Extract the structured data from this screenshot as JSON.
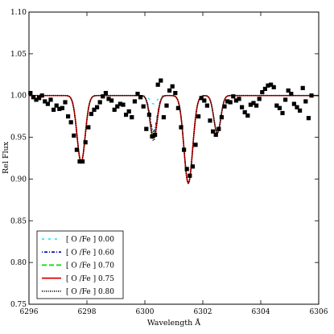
{
  "chart_data": {
    "type": "line",
    "xlabel": "Wavelength Å",
    "ylabel": "Rel Flux",
    "xlim": [
      6296,
      6306
    ],
    "ylim": [
      0.75,
      1.1
    ],
    "x_ticks": [
      6296,
      6298,
      6300,
      6302,
      6304,
      6306
    ],
    "x_tick_labels": [
      "6296",
      "6298",
      "6300",
      "6302",
      "6304",
      "6306"
    ],
    "y_ticks": [
      0.75,
      0.8,
      0.85,
      0.9,
      0.95,
      1.0,
      1.05,
      1.1
    ],
    "y_tick_labels": [
      "0.75",
      "0.80",
      "0.85",
      "0.90",
      "0.95",
      "1.00",
      "1.05",
      "1.10"
    ],
    "grid": false,
    "legend_position": "bottom-left",
    "observed": {
      "marker": "square",
      "color": "#000000",
      "points": [
        [
          6296.05,
          1.003
        ],
        [
          6296.15,
          0.998
        ],
        [
          6296.25,
          0.995
        ],
        [
          6296.35,
          0.997
        ],
        [
          6296.45,
          1.0
        ],
        [
          6296.55,
          0.993
        ],
        [
          6296.65,
          0.99
        ],
        [
          6296.75,
          0.995
        ],
        [
          6296.85,
          0.983
        ],
        [
          6296.95,
          0.988
        ],
        [
          6297.05,
          0.984
        ],
        [
          6297.15,
          0.985
        ],
        [
          6297.25,
          0.992
        ],
        [
          6297.35,
          0.975
        ],
        [
          6297.45,
          0.968
        ],
        [
          6297.55,
          0.952
        ],
        [
          6297.65,
          0.935
        ],
        [
          6297.75,
          0.921
        ],
        [
          6297.85,
          0.921
        ],
        [
          6297.95,
          0.944
        ],
        [
          6298.05,
          0.962
        ],
        [
          6298.15,
          0.978
        ],
        [
          6298.25,
          0.983
        ],
        [
          6298.35,
          0.986
        ],
        [
          6298.45,
          0.992
        ],
        [
          6298.55,
          0.999
        ],
        [
          6298.65,
          1.003
        ],
        [
          6298.75,
          0.996
        ],
        [
          6298.85,
          0.994
        ],
        [
          6298.95,
          0.983
        ],
        [
          6299.05,
          0.987
        ],
        [
          6299.15,
          0.99
        ],
        [
          6299.25,
          0.989
        ],
        [
          6299.35,
          0.977
        ],
        [
          6299.45,
          0.981
        ],
        [
          6299.55,
          0.974
        ],
        [
          6299.65,
          0.993
        ],
        [
          6299.75,
          1.002
        ],
        [
          6299.85,
          0.998
        ],
        [
          6299.95,
          0.987
        ],
        [
          6300.05,
          0.96
        ],
        [
          6300.15,
          0.977
        ],
        [
          6300.25,
          0.951
        ],
        [
          6300.35,
          0.953
        ],
        [
          6300.45,
          1.013
        ],
        [
          6300.55,
          1.018
        ],
        [
          6300.65,
          0.974
        ],
        [
          6300.75,
          0.988
        ],
        [
          6300.85,
          1.006
        ],
        [
          6300.95,
          1.011
        ],
        [
          6301.05,
          1.003
        ],
        [
          6301.15,
          0.985
        ],
        [
          6301.25,
          0.962
        ],
        [
          6301.35,
          0.935
        ],
        [
          6301.45,
          0.912
        ],
        [
          6301.55,
          0.904
        ],
        [
          6301.65,
          0.915
        ],
        [
          6301.75,
          0.941
        ],
        [
          6301.85,
          0.975
        ],
        [
          6301.95,
          0.997
        ],
        [
          6302.05,
          0.994
        ],
        [
          6302.15,
          0.988
        ],
        [
          6302.25,
          0.97
        ],
        [
          6302.35,
          0.957
        ],
        [
          6302.45,
          0.953
        ],
        [
          6302.55,
          0.96
        ],
        [
          6302.65,
          0.974
        ],
        [
          6302.75,
          0.987
        ],
        [
          6302.85,
          0.993
        ],
        [
          6302.95,
          0.992
        ],
        [
          6303.05,
          0.999
        ],
        [
          6303.15,
          0.994
        ],
        [
          6303.25,
          0.996
        ],
        [
          6303.35,
          0.986
        ],
        [
          6303.45,
          0.98
        ],
        [
          6303.55,
          0.976
        ],
        [
          6303.65,
          0.989
        ],
        [
          6303.75,
          0.991
        ],
        [
          6303.85,
          0.988
        ],
        [
          6303.95,
          0.996
        ],
        [
          6304.05,
          1.004
        ],
        [
          6304.15,
          1.008
        ],
        [
          6304.25,
          1.012
        ],
        [
          6304.35,
          1.013
        ],
        [
          6304.45,
          1.01
        ],
        [
          6304.55,
          0.988
        ],
        [
          6304.65,
          0.985
        ],
        [
          6304.75,
          0.979
        ],
        [
          6304.85,
          0.995
        ],
        [
          6304.95,
          1.006
        ],
        [
          6305.05,
          1.002
        ],
        [
          6305.15,
          0.99
        ],
        [
          6305.25,
          0.986
        ],
        [
          6305.35,
          0.982
        ],
        [
          6305.45,
          1.009
        ],
        [
          6305.55,
          0.993
        ],
        [
          6305.65,
          0.973
        ],
        [
          6305.75,
          1.0
        ]
      ]
    },
    "lines": [
      {
        "center": 6297.8,
        "sigma": 0.14
      },
      {
        "center": 6301.5,
        "sigma": 0.15
      },
      {
        "center": 6302.5,
        "sigma": 0.12
      },
      {
        "center": 6300.3,
        "sigma": 0.12
      }
    ],
    "series": [
      {
        "name": "[ O /Fe ] 0.00",
        "color": "#00e5ee",
        "dash": "3,5",
        "width": 1.2,
        "depths": [
          0.08,
          0.105,
          0.045,
          0.01
        ]
      },
      {
        "name": "[ O /Fe ] 0.60",
        "color": "#0000aa",
        "dash": "1,2,4,2",
        "width": 1.3,
        "depths": [
          0.08,
          0.105,
          0.045,
          0.043
        ]
      },
      {
        "name": "[ O /Fe ] 0.70",
        "color": "#00dd00",
        "dash": "6,3",
        "width": 1.4,
        "depths": [
          0.08,
          0.105,
          0.045,
          0.048
        ]
      },
      {
        "name": "[ O /Fe ] 0.75",
        "color": "#dd0000",
        "dash": "",
        "width": 1.5,
        "depths": [
          0.08,
          0.105,
          0.045,
          0.051
        ]
      },
      {
        "name": "[ O /Fe ] 0.80",
        "color": "#000000",
        "dash": "1,1.5",
        "width": 1.6,
        "depths": [
          0.08,
          0.105,
          0.045,
          0.054
        ]
      }
    ]
  }
}
